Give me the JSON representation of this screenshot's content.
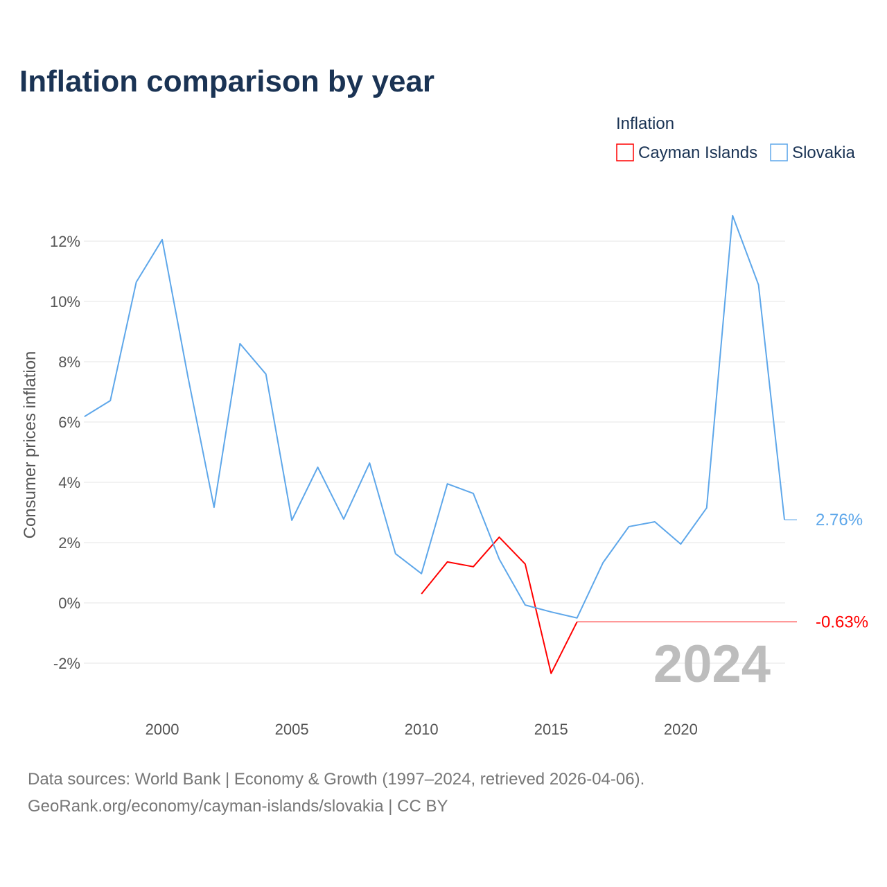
{
  "chart_data": {
    "type": "line",
    "title": "Inflation comparison by year",
    "legend_title": "Inflation",
    "legend_position": "top-right",
    "xlabel": "",
    "ylabel": "Consumer prices inflation",
    "xlim": [
      1997,
      2024
    ],
    "ylim": [
      -3,
      13.5
    ],
    "x_ticks": [
      2000,
      2005,
      2010,
      2015,
      2020
    ],
    "y_ticks": [
      -2,
      0,
      2,
      4,
      6,
      8,
      10,
      12
    ],
    "y_tick_labels": [
      "-2%",
      "0%",
      "2%",
      "4%",
      "6%",
      "8%",
      "10%",
      "12%"
    ],
    "x_tick_labels": [
      "2000",
      "2005",
      "2010",
      "2015",
      "2020"
    ],
    "grid": true,
    "year_watermark": "2024",
    "x": [
      1997,
      1998,
      1999,
      2000,
      2001,
      2002,
      2003,
      2004,
      2005,
      2006,
      2007,
      2008,
      2009,
      2010,
      2011,
      2012,
      2013,
      2014,
      2015,
      2016,
      2017,
      2018,
      2019,
      2020,
      2021,
      2022,
      2023,
      2024
    ],
    "series": [
      {
        "name": "Cayman Islands",
        "color": "#ff0000",
        "end_label": "-0.63%",
        "end_value": -0.63,
        "values": [
          null,
          null,
          null,
          null,
          null,
          null,
          null,
          null,
          null,
          null,
          null,
          null,
          null,
          0.3,
          1.36,
          1.2,
          2.18,
          1.29,
          -2.34,
          -0.63,
          null,
          null,
          null,
          null,
          null,
          null,
          null,
          null
        ]
      },
      {
        "name": "Slovakia",
        "color": "#5ea7ea",
        "end_label": "2.76%",
        "end_value": 2.76,
        "values": [
          6.18,
          6.71,
          10.64,
          12.05,
          7.47,
          3.17,
          8.6,
          7.59,
          2.74,
          4.5,
          2.78,
          4.64,
          1.63,
          0.97,
          3.95,
          3.63,
          1.45,
          -0.07,
          -0.3,
          -0.5,
          1.33,
          2.53,
          2.69,
          1.95,
          3.15,
          12.85,
          10.55,
          2.76
        ]
      }
    ]
  },
  "footer": {
    "line1": "Data sources: World Bank | Economy & Growth (1997–2024, retrieved 2026-04-06).",
    "line2": "GeoRank.org/economy/cayman-islands/slovakia | CC BY"
  }
}
